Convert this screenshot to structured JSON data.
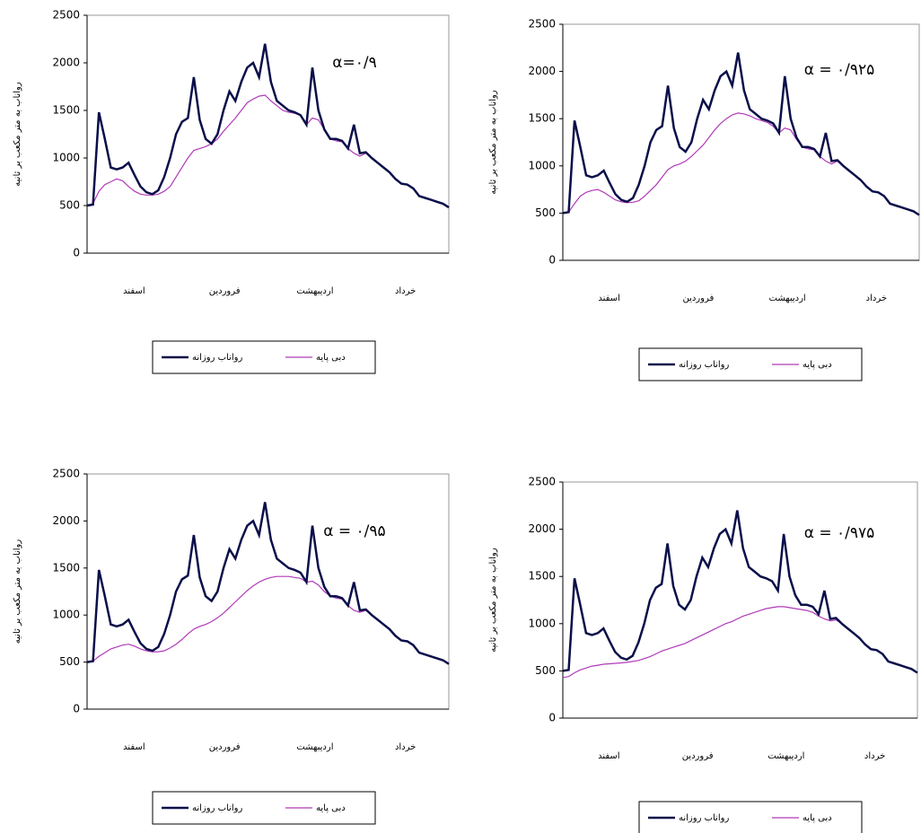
{
  "chart_data": [
    {
      "type": "line",
      "annotation": "α=۰/۹",
      "y_label": "رواناب به متر مکعب بر ثانیه",
      "month_labels": [
        "اسفند",
        "فروردین",
        "اردیبهشت",
        "خرداد"
      ],
      "ylim": [
        0,
        2500
      ],
      "yticks": [
        0,
        500,
        1000,
        1500,
        2000,
        2500
      ],
      "series": [
        {
          "name": "رواناب روزانه",
          "color": "#0a0f4a",
          "values": [
            500,
            510,
            1480,
            1200,
            900,
            880,
            900,
            950,
            820,
            700,
            640,
            620,
            660,
            800,
            1000,
            1250,
            1380,
            1420,
            1850,
            1400,
            1200,
            1150,
            1250,
            1500,
            1700,
            1600,
            1800,
            1950,
            2000,
            1850,
            2200,
            1800,
            1600,
            1550,
            1500,
            1480,
            1450,
            1350,
            1950,
            1500,
            1300,
            1200,
            1200,
            1180,
            1100,
            1350,
            1050,
            1060,
            1000,
            950,
            900,
            850,
            780,
            730,
            720,
            680,
            600,
            580,
            560,
            540,
            520,
            480
          ]
        },
        {
          "name": "دبی پایه",
          "color": "#b03ab8",
          "values": [
            500,
            520,
            650,
            720,
            750,
            780,
            760,
            700,
            650,
            620,
            610,
            610,
            620,
            650,
            700,
            800,
            900,
            1000,
            1080,
            1100,
            1120,
            1150,
            1200,
            1280,
            1350,
            1420,
            1500,
            1580,
            1620,
            1650,
            1660,
            1600,
            1550,
            1500,
            1480,
            1470,
            1450,
            1350,
            1420,
            1400,
            1300,
            1200,
            1180,
            1170,
            1100,
            1050,
            1020,
            1050,
            1000,
            950,
            900,
            850,
            780,
            730,
            720,
            680,
            600,
            580,
            560,
            540,
            520,
            480
          ]
        }
      ]
    },
    {
      "type": "line",
      "annotation": "α = ۰/۹۲۵",
      "y_label": "رواناب به متر مکعب بر ثانیه",
      "month_labels": [
        "اسفند",
        "فروردین",
        "اردیبهشت",
        "خرداد"
      ],
      "ylim": [
        0,
        2500
      ],
      "yticks": [
        0,
        500,
        1000,
        1500,
        2000,
        2500
      ],
      "series": [
        {
          "name": "رواناب روزانه",
          "color": "#0a0f4a",
          "values": [
            500,
            510,
            1480,
            1200,
            900,
            880,
            900,
            950,
            820,
            700,
            640,
            620,
            660,
            800,
            1000,
            1250,
            1380,
            1420,
            1850,
            1400,
            1200,
            1150,
            1250,
            1500,
            1700,
            1600,
            1800,
            1950,
            2000,
            1850,
            2200,
            1800,
            1600,
            1550,
            1500,
            1480,
            1450,
            1350,
            1950,
            1500,
            1300,
            1200,
            1200,
            1180,
            1100,
            1350,
            1050,
            1060,
            1000,
            950,
            900,
            850,
            780,
            730,
            720,
            680,
            600,
            580,
            560,
            540,
            520,
            480
          ]
        },
        {
          "name": "دبی پایه",
          "color": "#b03ab8",
          "values": [
            500,
            510,
            600,
            680,
            720,
            740,
            750,
            720,
            680,
            640,
            620,
            610,
            615,
            630,
            680,
            740,
            800,
            880,
            960,
            1000,
            1020,
            1050,
            1100,
            1160,
            1220,
            1300,
            1380,
            1450,
            1500,
            1540,
            1560,
            1550,
            1530,
            1500,
            1480,
            1460,
            1420,
            1350,
            1400,
            1380,
            1280,
            1200,
            1180,
            1170,
            1100,
            1050,
            1020,
            1050,
            1000,
            950,
            900,
            850,
            780,
            730,
            720,
            680,
            600,
            580,
            560,
            540,
            520,
            480
          ]
        }
      ]
    },
    {
      "type": "line",
      "annotation": "α = ۰/۹۵",
      "y_label": "رواناب به متر مکعب بر ثانیه",
      "month_labels": [
        "اسفند",
        "فروردین",
        "اردیبهشت",
        "خرداد"
      ],
      "ylim": [
        0,
        2500
      ],
      "yticks": [
        0,
        500,
        1000,
        1500,
        2000,
        2500
      ],
      "series": [
        {
          "name": "رواناب روزانه",
          "color": "#0a0f4a",
          "values": [
            500,
            510,
            1480,
            1200,
            900,
            880,
            900,
            950,
            820,
            700,
            640,
            620,
            660,
            800,
            1000,
            1250,
            1380,
            1420,
            1850,
            1400,
            1200,
            1150,
            1250,
            1500,
            1700,
            1600,
            1800,
            1950,
            2000,
            1850,
            2200,
            1800,
            1600,
            1550,
            1500,
            1480,
            1450,
            1350,
            1950,
            1500,
            1300,
            1200,
            1200,
            1180,
            1100,
            1350,
            1050,
            1060,
            1000,
            950,
            900,
            850,
            780,
            730,
            720,
            680,
            600,
            580,
            560,
            540,
            520,
            480
          ]
        },
        {
          "name": "دبی پایه",
          "color": "#b03ab8",
          "values": [
            500,
            510,
            560,
            600,
            640,
            660,
            680,
            690,
            670,
            640,
            620,
            610,
            610,
            620,
            650,
            690,
            740,
            800,
            850,
            880,
            900,
            930,
            970,
            1020,
            1080,
            1140,
            1200,
            1260,
            1310,
            1350,
            1380,
            1400,
            1410,
            1410,
            1410,
            1400,
            1390,
            1350,
            1360,
            1320,
            1250,
            1200,
            1180,
            1170,
            1100,
            1050,
            1030,
            1050,
            1000,
            950,
            900,
            850,
            780,
            730,
            720,
            680,
            600,
            580,
            560,
            540,
            520,
            480
          ]
        }
      ]
    },
    {
      "type": "line",
      "annotation": "α = ۰/۹۷۵",
      "y_label": "رواناب به متر مکعب بر ثانیه",
      "month_labels": [
        "اسفند",
        "فروردین",
        "اردیبهشت",
        "خرداد"
      ],
      "ylim": [
        0,
        2500
      ],
      "yticks": [
        0,
        500,
        1000,
        1500,
        2000,
        2500
      ],
      "series": [
        {
          "name": "رواناب روزانه",
          "color": "#0a0f4a",
          "values": [
            500,
            510,
            1480,
            1200,
            900,
            880,
            900,
            950,
            820,
            700,
            640,
            620,
            660,
            800,
            1000,
            1250,
            1380,
            1420,
            1850,
            1400,
            1200,
            1150,
            1250,
            1500,
            1700,
            1600,
            1800,
            1950,
            2000,
            1850,
            2200,
            1800,
            1600,
            1550,
            1500,
            1480,
            1450,
            1350,
            1950,
            1500,
            1300,
            1200,
            1200,
            1180,
            1100,
            1350,
            1050,
            1060,
            1000,
            950,
            900,
            850,
            780,
            730,
            720,
            680,
            600,
            580,
            560,
            540,
            520,
            480
          ]
        },
        {
          "name": "دبی پایه",
          "color": "#b03ab8",
          "values": [
            430,
            440,
            480,
            510,
            530,
            550,
            560,
            570,
            575,
            580,
            585,
            590,
            600,
            610,
            630,
            650,
            680,
            710,
            730,
            750,
            770,
            790,
            820,
            850,
            880,
            910,
            940,
            970,
            1000,
            1020,
            1050,
            1080,
            1100,
            1120,
            1140,
            1160,
            1170,
            1180,
            1180,
            1170,
            1160,
            1150,
            1140,
            1120,
            1080,
            1050,
            1030,
            1040,
            1000,
            950,
            900,
            850,
            780,
            730,
            720,
            680,
            600,
            580,
            560,
            540,
            520,
            480
          ]
        }
      ]
    }
  ]
}
